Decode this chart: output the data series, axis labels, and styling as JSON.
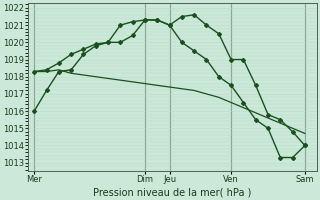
{
  "background_color": "#cce8d8",
  "grid_color_major": "#a8cdb8",
  "grid_color_minor": "#b8dcc8",
  "line_color": "#1a5020",
  "xlabel": "Pression niveau de la mer( hPa )",
  "ylim": [
    1012.5,
    1022.3
  ],
  "yticks": [
    1013,
    1014,
    1015,
    1016,
    1017,
    1018,
    1019,
    1020,
    1021,
    1022
  ],
  "xtick_labels": [
    "Mer",
    "Dim",
    "Jeu",
    "Ven",
    "Sam"
  ],
  "xtick_positions": [
    0,
    9,
    11,
    16,
    22
  ],
  "vlines": [
    0,
    9,
    11,
    16,
    22
  ],
  "xlim": [
    -0.5,
    23
  ],
  "line1_x": [
    0,
    1,
    2,
    3,
    4,
    5,
    6,
    7,
    8,
    9,
    10,
    11,
    12,
    13,
    14,
    15,
    16,
    17,
    18,
    19,
    20,
    21,
    22
  ],
  "line1_y": [
    1016.0,
    1017.2,
    1018.3,
    1018.4,
    1019.3,
    1019.8,
    1020.0,
    1020.0,
    1020.4,
    1021.3,
    1021.3,
    1021.0,
    1021.5,
    1021.6,
    1021.0,
    1020.5,
    1019.0,
    1019.0,
    1017.5,
    1015.8,
    1015.5,
    1014.8,
    1014.0
  ],
  "line2_x": [
    0,
    1,
    2,
    3,
    4,
    5,
    6,
    7,
    8,
    9,
    10,
    11,
    12,
    13,
    14,
    15,
    16,
    17,
    18,
    19,
    20,
    21,
    22
  ],
  "line2_y": [
    1018.3,
    1018.3,
    1018.4,
    1018.2,
    1018.1,
    1018.0,
    1017.9,
    1017.8,
    1017.7,
    1017.6,
    1017.5,
    1017.4,
    1017.3,
    1017.2,
    1017.0,
    1016.8,
    1016.5,
    1016.2,
    1015.9,
    1015.6,
    1015.3,
    1015.0,
    1014.7
  ],
  "line3_x": [
    0,
    1,
    2,
    3,
    4,
    5,
    6,
    7,
    8,
    9,
    10,
    11,
    12,
    13,
    14,
    15,
    16,
    17,
    18,
    19,
    20,
    21,
    22
  ],
  "line3_y": [
    1018.3,
    1018.4,
    1018.8,
    1019.3,
    1019.6,
    1019.9,
    1020.0,
    1021.0,
    1021.2,
    1021.3,
    1021.3,
    1021.0,
    1020.0,
    1019.5,
    1019.0,
    1018.0,
    1017.5,
    1016.5,
    1015.5,
    1015.0,
    1013.3,
    1013.3,
    1014.0
  ]
}
